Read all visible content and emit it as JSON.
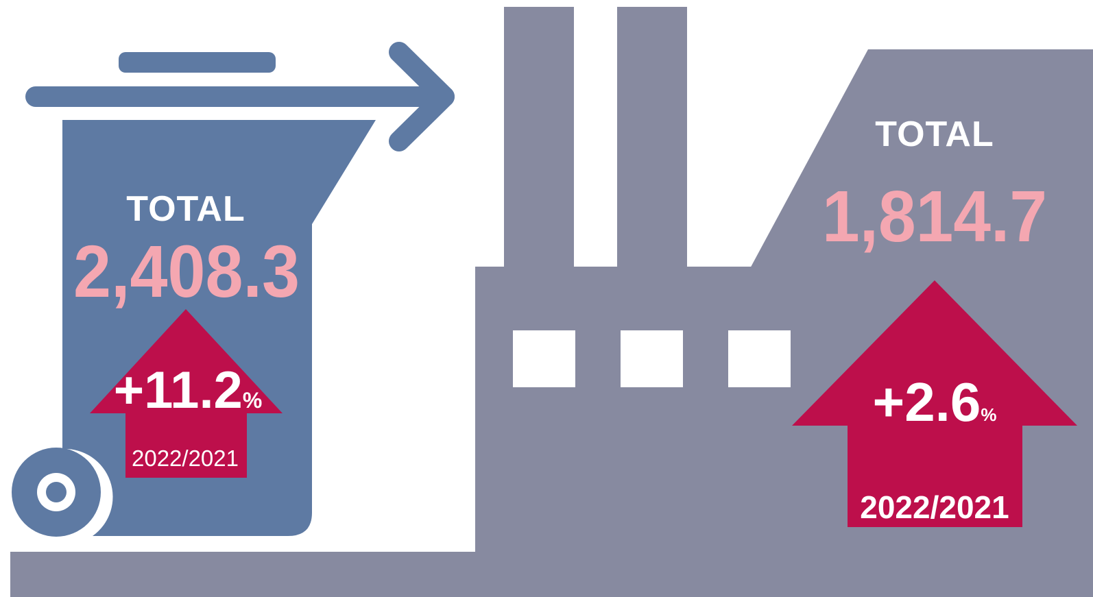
{
  "colors": {
    "bin": "#5e7aa3",
    "factory": "#878aa0",
    "ground": "#878aa0",
    "arrow_change": "#bd0f4b",
    "value_text": "#f4a7b1",
    "label_text": "#ffffff"
  },
  "icons": {
    "bin": "waste-bin-icon",
    "arrow": "right-arrow-icon",
    "factory": "factory-icon"
  },
  "waste_bin": {
    "total_label": "TOTAL",
    "total_value": "2,408.3",
    "change_value": "+11.2",
    "change_unit": "%",
    "period": "2022/2021"
  },
  "factory": {
    "total_label": "TOTAL",
    "total_value": "1,814.7",
    "change_value": "+2.6",
    "change_unit": "%",
    "period": "2022/2021"
  }
}
